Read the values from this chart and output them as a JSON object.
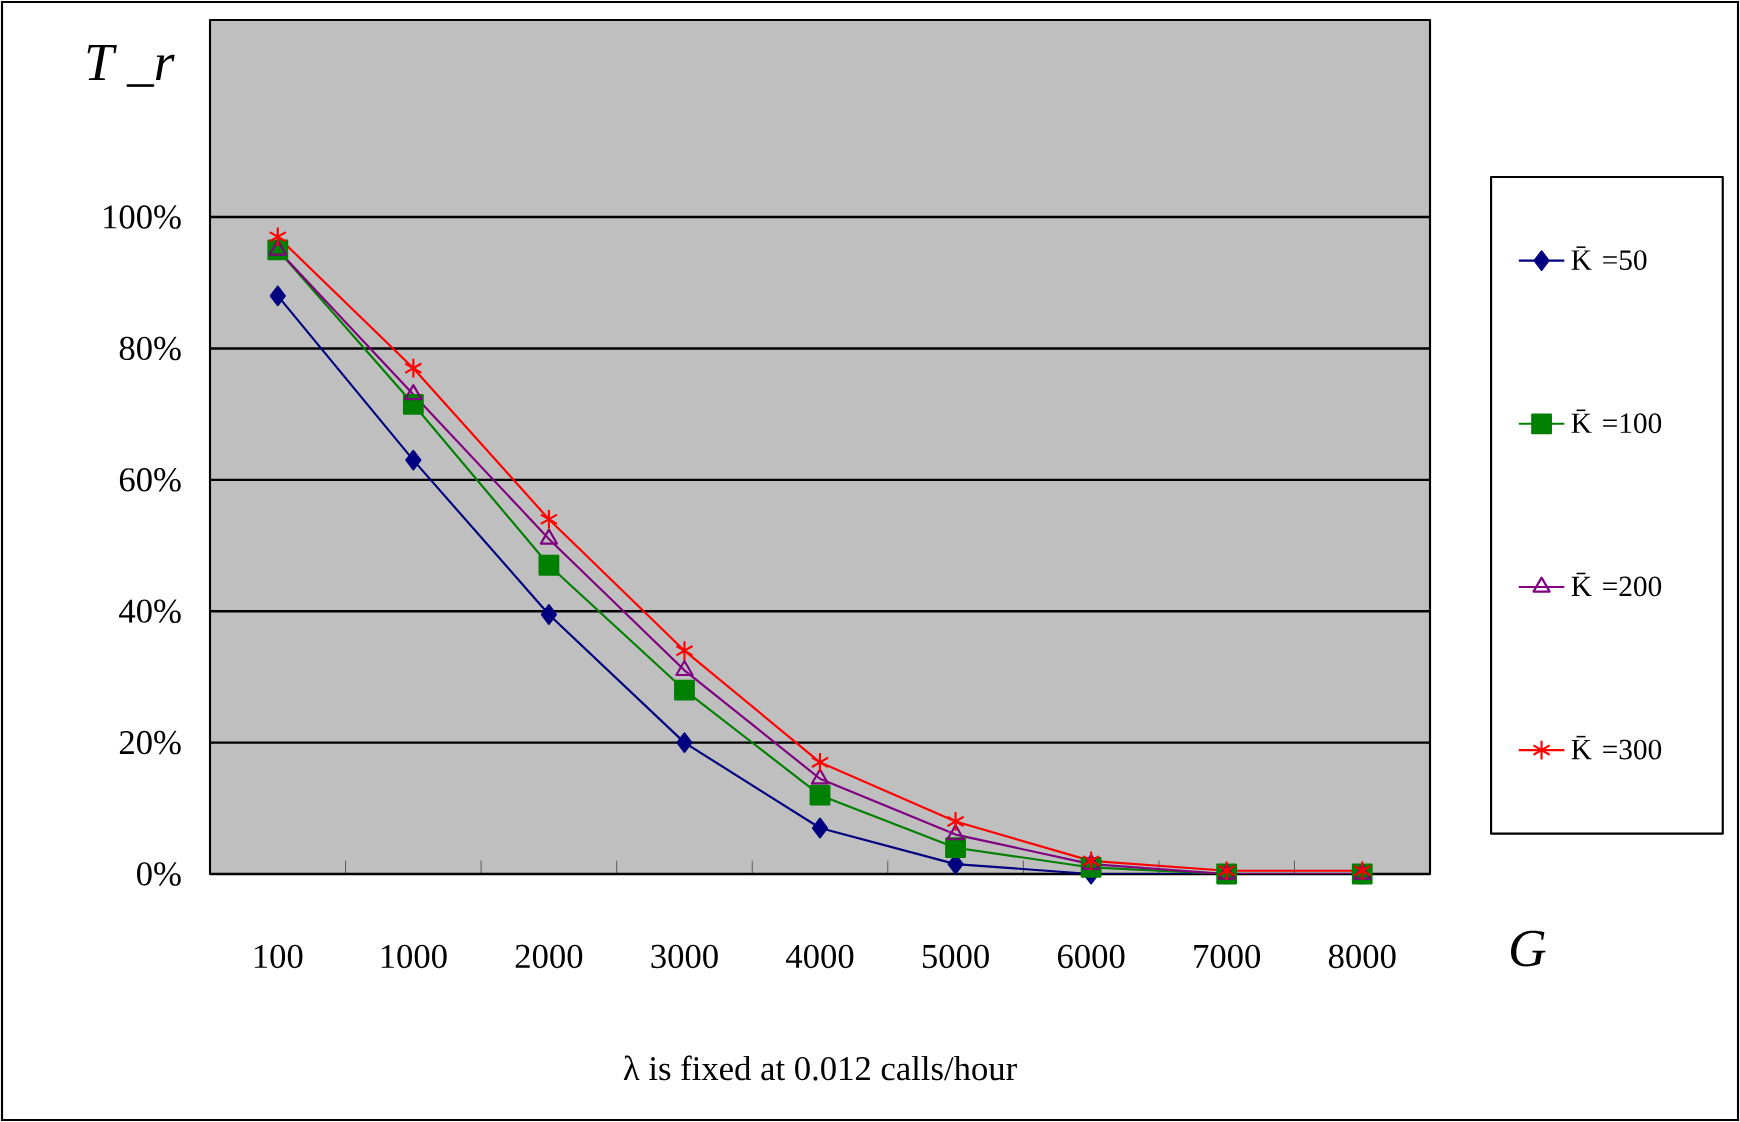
{
  "chart_data": {
    "type": "line",
    "xlabel": "G",
    "ylabel": "T _r",
    "annotations": [
      "λ is fixed at 0.012 calls/hour"
    ],
    "categories": [
      "100",
      "1000",
      "2000",
      "3000",
      "4000",
      "5000",
      "6000",
      "7000",
      "8000"
    ],
    "series": [
      {
        "name": "K̄ =50",
        "color": "#000080",
        "marker": "diamond",
        "values": [
          88,
          63,
          39.5,
          20,
          7,
          1.5,
          0,
          0,
          0
        ]
      },
      {
        "name": "K̄ =100",
        "color": "#008000",
        "marker": "square",
        "values": [
          95,
          71.5,
          47,
          28,
          12,
          4,
          1,
          0,
          0
        ]
      },
      {
        "name": "K̄ =200",
        "color": "#800080",
        "marker": "triangle",
        "values": [
          95,
          73,
          51,
          31,
          14.5,
          6,
          1.5,
          0,
          0
        ]
      },
      {
        "name": "K̄ =300",
        "color": "#ff0000",
        "marker": "cross",
        "values": [
          97,
          77,
          54,
          34,
          17,
          8,
          2,
          0.5,
          0.5
        ]
      }
    ],
    "ylim": [
      0,
      130
    ],
    "yticks": [
      {
        "value": 0,
        "label": "0%"
      },
      {
        "value": 20,
        "label": "20%"
      },
      {
        "value": 40,
        "label": "40%"
      },
      {
        "value": 60,
        "label": "60%"
      },
      {
        "value": 80,
        "label": "80%"
      },
      {
        "value": 100,
        "label": "100%"
      }
    ],
    "grid": "y",
    "legend": "right",
    "line_style": "solid"
  }
}
